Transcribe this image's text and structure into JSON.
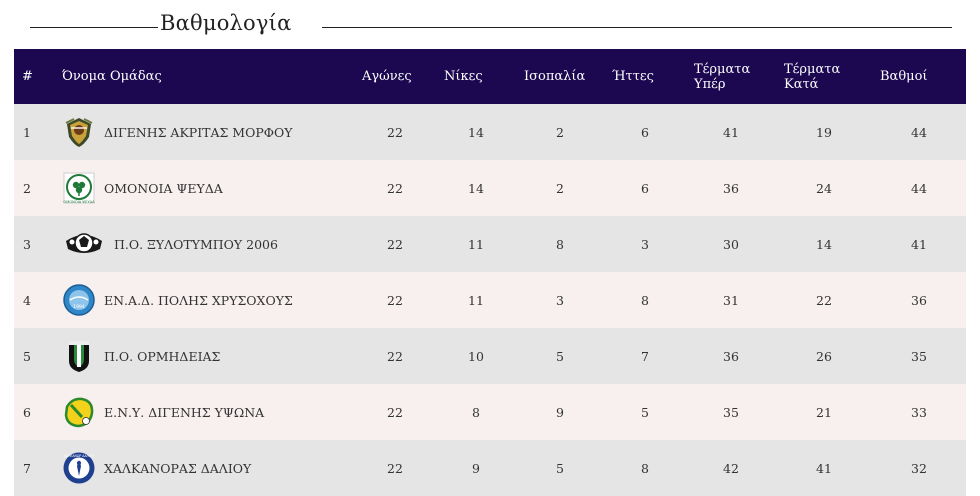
{
  "page": {
    "title": "Βαθμολογία"
  },
  "table": {
    "headers": {
      "pos": "#",
      "team": "Όνομα Ομάδας",
      "games": "Αγώνες",
      "wins": "Νίκες",
      "draws": "Ισοπαλία",
      "losses": "Ήττες",
      "gf": "Τέρματα Υπέρ",
      "ga": "Τέρματα Κατά",
      "pts": "Βαθμοί"
    },
    "rows": [
      {
        "pos": "1",
        "team": "ΔΙΓΕΝΗΣ ΑΚΡΙΤΑΣ ΜΟΡΦΟΥ",
        "logo": "digenis-akritas-morfou-crest",
        "games": "22",
        "wins": "14",
        "draws": "2",
        "losses": "6",
        "gf": "41",
        "ga": "19",
        "pts": "44"
      },
      {
        "pos": "2",
        "team": "ΟΜΟΝΟΙΑ ΨΕΥΔΑ",
        "logo": "omonoia-psevda-crest",
        "logo_text": "ΟΜΟΝΟΙΑ ΨΕΥΔΑ",
        "games": "22",
        "wins": "14",
        "draws": "2",
        "losses": "6",
        "gf": "36",
        "ga": "24",
        "pts": "44"
      },
      {
        "pos": "3",
        "team": "Π.Ο. ΞΥΛΟΤΥΜΠΟΥ 2006",
        "logo": "xylotymbou-crest",
        "games": "22",
        "wins": "11",
        "draws": "8",
        "losses": "3",
        "gf": "30",
        "ga": "14",
        "pts": "41"
      },
      {
        "pos": "4",
        "team": "ΕΝ.Α.Δ. ΠΟΛΗΣ ΧΡΥΣΟΧΟΥΣ",
        "logo": "enad-polis-crest",
        "logo_text": "1994",
        "games": "22",
        "wins": "11",
        "draws": "3",
        "losses": "8",
        "gf": "31",
        "ga": "22",
        "pts": "36"
      },
      {
        "pos": "5",
        "team": "Π.Ο. ΟΡΜΗΔΕΙΑΣ",
        "logo": "ormideia-crest",
        "games": "22",
        "wins": "10",
        "draws": "5",
        "losses": "7",
        "gf": "36",
        "ga": "26",
        "pts": "35"
      },
      {
        "pos": "6",
        "team": "Ε.Ν.Υ. ΔΙΓΕΝΗΣ ΥΨΩΝΑ",
        "logo": "digenis-ypsona-crest",
        "games": "22",
        "wins": "8",
        "draws": "9",
        "losses": "5",
        "gf": "35",
        "ga": "21",
        "pts": "33"
      },
      {
        "pos": "7",
        "team": "ΧΑΛΚΑΝΟΡΑΣ ΔΑΛΙΟΥ",
        "logo": "chalkanoras-crest",
        "logo_text": "ΧΑΛΚΑΝΩΡ ΔΑΛΙΟΥ",
        "games": "22",
        "wins": "9",
        "draws": "5",
        "losses": "8",
        "gf": "42",
        "ga": "41",
        "pts": "32"
      }
    ]
  },
  "colors": {
    "header_bg": "#1b0850",
    "row_odd": "#e5e5e5",
    "row_even": "#f8efef",
    "text": "#333333"
  }
}
